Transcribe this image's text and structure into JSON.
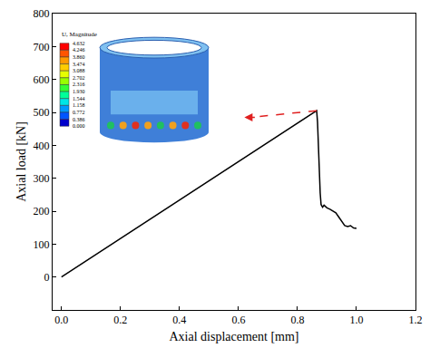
{
  "chart_data": {
    "type": "line",
    "x_label": "Axial displacement [mm]",
    "y_label": "Axial load [kN]",
    "x": [
      0,
      0.2,
      0.4,
      0.6,
      0.8,
      0.865,
      0.868,
      0.871,
      0.874,
      0.877,
      0.88,
      0.885,
      0.89,
      0.9,
      0.91,
      0.92,
      0.93,
      0.94,
      0.95,
      0.96,
      0.97,
      0.98,
      0.99,
      1.0
    ],
    "values": [
      0,
      117,
      233,
      350,
      467,
      505,
      470,
      390,
      310,
      255,
      220,
      212,
      218,
      210,
      206,
      200,
      195,
      182,
      170,
      156,
      153,
      156,
      149,
      148
    ],
    "color": "#000000",
    "xlim": [
      -0.03,
      1.2
    ],
    "ylim": [
      -100,
      800
    ],
    "xticks": [
      {
        "value": 0,
        "label": "0.0"
      },
      0.2,
      0.4,
      0.6,
      0.8,
      {
        "value": 1,
        "label": "1.0"
      },
      1.2
    ],
    "yticks": [
      0,
      100,
      200,
      300,
      400,
      500,
      600,
      700,
      800
    ],
    "grid": false,
    "contour_legend": {
      "title": "U, Magnitude",
      "values": [
        4.632,
        4.246,
        {
          "value": 3.86,
          "label": "3.860"
        },
        3.474,
        3.088,
        2.702,
        2.316,
        {
          "value": 1.93,
          "label": "1.930"
        },
        1.544,
        1.158,
        0.772,
        0.386,
        {
          "value": 0,
          "label": "0.000"
        }
      ]
    }
  }
}
